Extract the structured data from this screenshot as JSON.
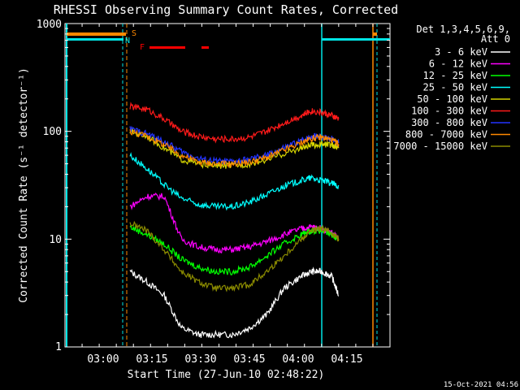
{
  "colors": {
    "background": "#000000",
    "axes": "#ffffff",
    "night": "#00e5e5",
    "saa": "#ff8800",
    "flare": "#ff0000"
  },
  "chart_data": {
    "type": "line",
    "title": "RHESSI Observing Summary Count Rates, Corrected",
    "xlabel": "Start Time (27-Jun-10 02:48:22)",
    "ylabel": "Corrected Count Rate (s⁻¹ detector⁻¹)",
    "yscale": "log",
    "ylim": [
      1,
      1000
    ],
    "xlim_minutes_after_start": [
      0,
      95
    ],
    "x_ticks": [
      "03:00",
      "03:15",
      "03:30",
      "03:45",
      "04:00",
      "04:15"
    ],
    "y_ticks": [
      "1",
      "10",
      "100",
      "1000"
    ],
    "legend_header": [
      "Det 1,3,4,5,6,9,",
      "Att 0"
    ],
    "legend_position": "top-right",
    "timestamp": "15-Oct-2021 04:56",
    "markers": {
      "saa_label": "S",
      "night_label": "N",
      "flare_label": "F"
    },
    "series": [
      {
        "name": "3 - 6 keV",
        "color": "#ffffff",
        "key": "e1"
      },
      {
        "name": "6 - 12 keV",
        "color": "#ff00ff",
        "key": "e2"
      },
      {
        "name": "12 - 25 keV",
        "color": "#00ff00",
        "key": "e3"
      },
      {
        "name": "25 - 50 keV",
        "color": "#00ffff",
        "key": "e4"
      },
      {
        "name": "50 - 100 keV",
        "color": "#d4d400",
        "key": "e5"
      },
      {
        "name": "100 - 300 keV",
        "color": "#ff1a1a",
        "key": "e6"
      },
      {
        "name": "300 - 800 keV",
        "color": "#2233ff",
        "key": "e7"
      },
      {
        "name": "800 - 7000 keV",
        "color": "#ff8800",
        "key": "e8"
      },
      {
        "name": "7000 - 15000 keV",
        "color": "#8a8a00",
        "key": "e9"
      }
    ],
    "series_values": {
      "x": [
        19,
        24,
        29,
        34,
        39,
        44,
        49,
        54,
        59,
        64,
        69,
        72,
        75,
        78,
        80
      ],
      "e1": [
        5,
        4,
        3,
        1.5,
        1.3,
        1.3,
        1.3,
        1.5,
        2,
        3.5,
        4.5,
        5,
        5,
        4.5,
        3
      ],
      "e2": [
        20,
        25,
        25,
        10,
        8.5,
        8,
        8,
        8.5,
        9.5,
        11,
        12.5,
        13,
        12.5,
        11.5,
        10
      ],
      "e3": [
        13,
        11,
        9,
        6.5,
        5.5,
        5,
        5,
        5.5,
        7,
        9,
        11,
        12,
        12,
        11,
        10
      ],
      "e4": [
        60,
        45,
        32,
        24,
        21,
        20,
        20,
        22,
        26,
        31,
        35,
        37,
        35,
        33,
        31
      ],
      "e5": [
        100,
        90,
        70,
        55,
        50,
        48,
        48,
        50,
        55,
        62,
        70,
        74,
        76,
        75,
        70
      ],
      "e6": [
        170,
        160,
        130,
        100,
        90,
        85,
        85,
        88,
        100,
        120,
        140,
        155,
        150,
        140,
        130
      ],
      "e7": [
        105,
        95,
        80,
        65,
        56,
        53,
        52,
        55,
        60,
        70,
        82,
        90,
        90,
        85,
        78
      ],
      "e8": [
        100,
        90,
        75,
        60,
        52,
        50,
        50,
        52,
        57,
        67,
        78,
        86,
        88,
        83,
        76
      ],
      "e9": [
        14,
        12,
        8,
        5,
        4,
        3.5,
        3.5,
        3.8,
        5,
        7,
        10,
        12,
        12.5,
        11.5,
        10
      ]
    }
  }
}
